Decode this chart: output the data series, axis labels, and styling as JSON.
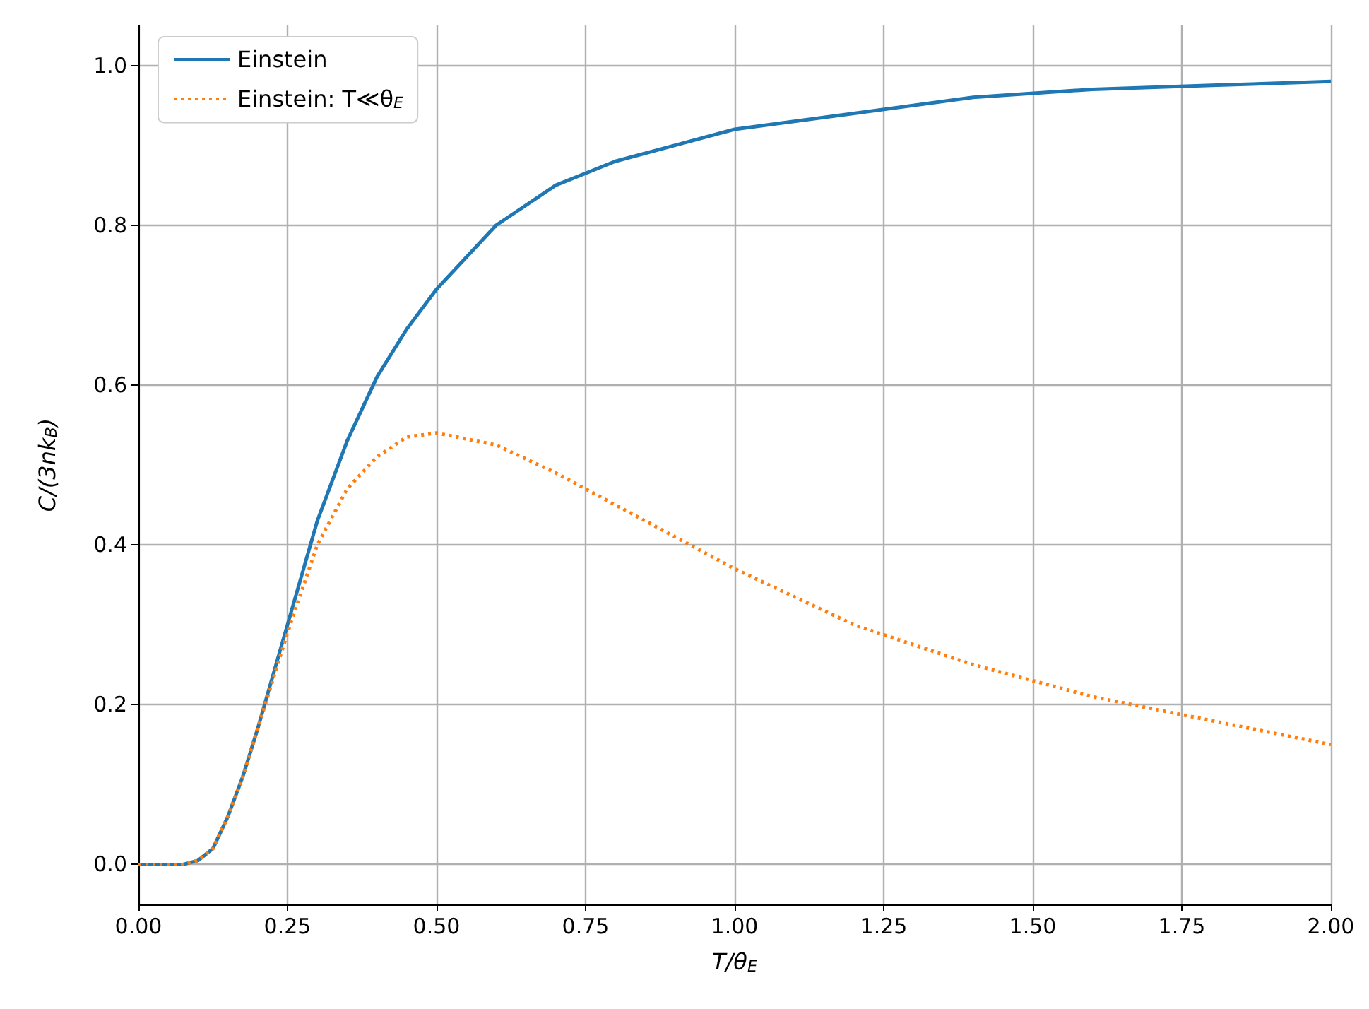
{
  "chart_data": {
    "type": "line",
    "xlabel": "T/θ$_{E}$",
    "ylabel": "C/(3nk$_{B}$)",
    "x": [
      0,
      0.05,
      0.075,
      0.1,
      0.125,
      0.15,
      0.175,
      0.2,
      0.25,
      0.3,
      0.35,
      0.4,
      0.45,
      0.5,
      0.6,
      0.7,
      0.8,
      0.9,
      1.0,
      1.2,
      1.4,
      1.6,
      1.8,
      2.0
    ],
    "series": [
      {
        "name": "Einstein",
        "color": "#1f77b4",
        "line_style": "solid",
        "values": [
          0,
          0,
          0,
          0.005,
          0.02,
          0.06,
          0.11,
          0.17,
          0.3,
          0.43,
          0.53,
          0.61,
          0.67,
          0.72,
          0.8,
          0.85,
          0.88,
          0.9,
          0.92,
          0.94,
          0.96,
          0.97,
          0.975,
          0.98
        ]
      },
      {
        "name": "Einstein: T≪θ$_{E}$",
        "color": "#ff7f0e",
        "line_style": "dotted",
        "values": [
          0,
          0,
          0,
          0.005,
          0.02,
          0.06,
          0.11,
          0.17,
          0.29,
          0.4,
          0.47,
          0.51,
          0.535,
          0.54,
          0.525,
          0.49,
          0.45,
          0.41,
          0.37,
          0.3,
          0.25,
          0.21,
          0.18,
          0.15
        ]
      }
    ],
    "xlim": [
      0,
      2
    ],
    "ylim": [
      -0.05,
      1.05
    ],
    "xticks": [
      {
        "value": 0,
        "label": "0.00"
      },
      {
        "value": 0.25,
        "label": "0.25"
      },
      {
        "value": 0.5,
        "label": "0.50"
      },
      {
        "value": 0.75,
        "label": "0.75"
      },
      {
        "value": 1,
        "label": "1.00"
      },
      {
        "value": 1.25,
        "label": "1.25"
      },
      {
        "value": 1.5,
        "label": "1.50"
      },
      {
        "value": 1.75,
        "label": "1.75"
      },
      {
        "value": 2,
        "label": "2.00"
      }
    ],
    "yticks": [
      {
        "value": 0,
        "label": "0.0"
      },
      {
        "value": 0.2,
        "label": "0.2"
      },
      {
        "value": 0.4,
        "label": "0.4"
      },
      {
        "value": 0.6,
        "label": "0.6"
      },
      {
        "value": 0.8,
        "label": "0.8"
      },
      {
        "value": 1,
        "label": "1.0"
      }
    ],
    "grid": true,
    "legend": "top left",
    "marker": "none"
  }
}
